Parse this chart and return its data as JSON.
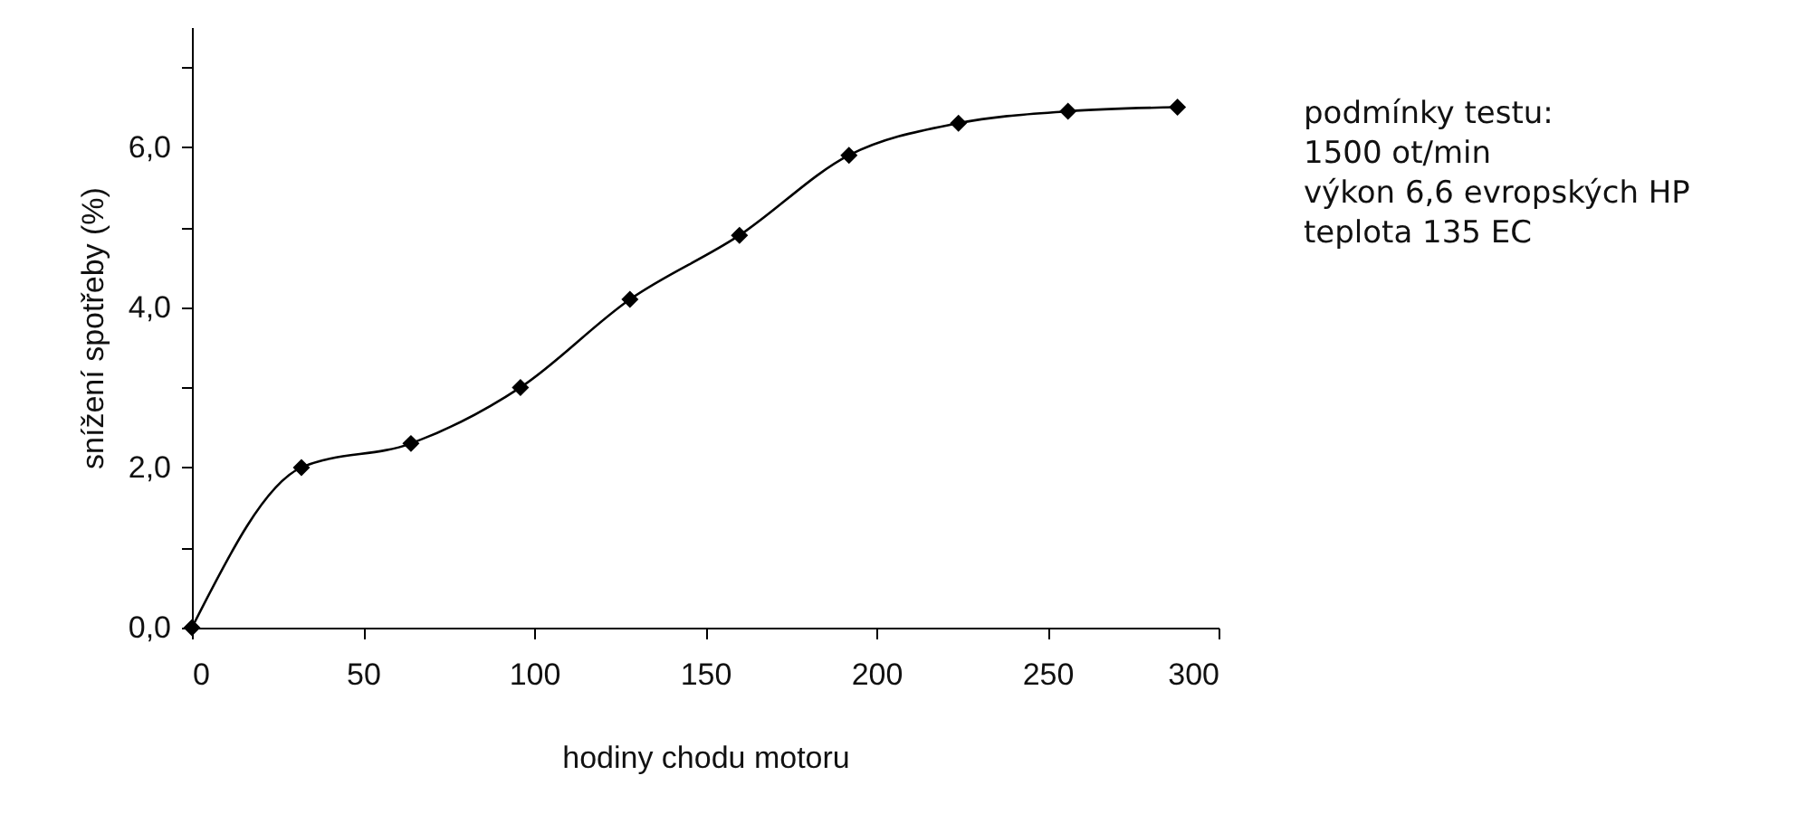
{
  "chart_data": {
    "type": "line",
    "xlabel": "hodiny chodu motoru",
    "ylabel": "snížení spotřeby (%)",
    "x": [
      0,
      32,
      64,
      96,
      128,
      160,
      192,
      224,
      256,
      288
    ],
    "series": [
      {
        "color": "#000000",
        "values": [
          0,
          2.0,
          2.3,
          3.0,
          4.1,
          4.9,
          5.9,
          6.3,
          6.45,
          6.5
        ]
      }
    ],
    "xlim": [
      0,
      300
    ],
    "xticks": [
      0,
      50,
      100,
      150,
      200,
      250,
      300
    ],
    "ylim": [
      0,
      7.5
    ],
    "yticks": [
      {
        "value": 0,
        "label": "0,0"
      },
      {
        "value": 1,
        "label": null
      },
      {
        "value": 2,
        "label": "2,0"
      },
      {
        "value": 3,
        "label": null
      },
      {
        "value": 4,
        "label": "4,0"
      },
      {
        "value": 5,
        "label": null
      },
      {
        "value": 6,
        "label": "6,0"
      },
      {
        "value": 7,
        "label": null
      }
    ],
    "marker": "diamond",
    "line_style": "solid",
    "annotations": [
      "podmínky testu:",
      "1500 ot/min",
      "výkon 6,6 evropských HP",
      "teplota 135 EC"
    ]
  }
}
